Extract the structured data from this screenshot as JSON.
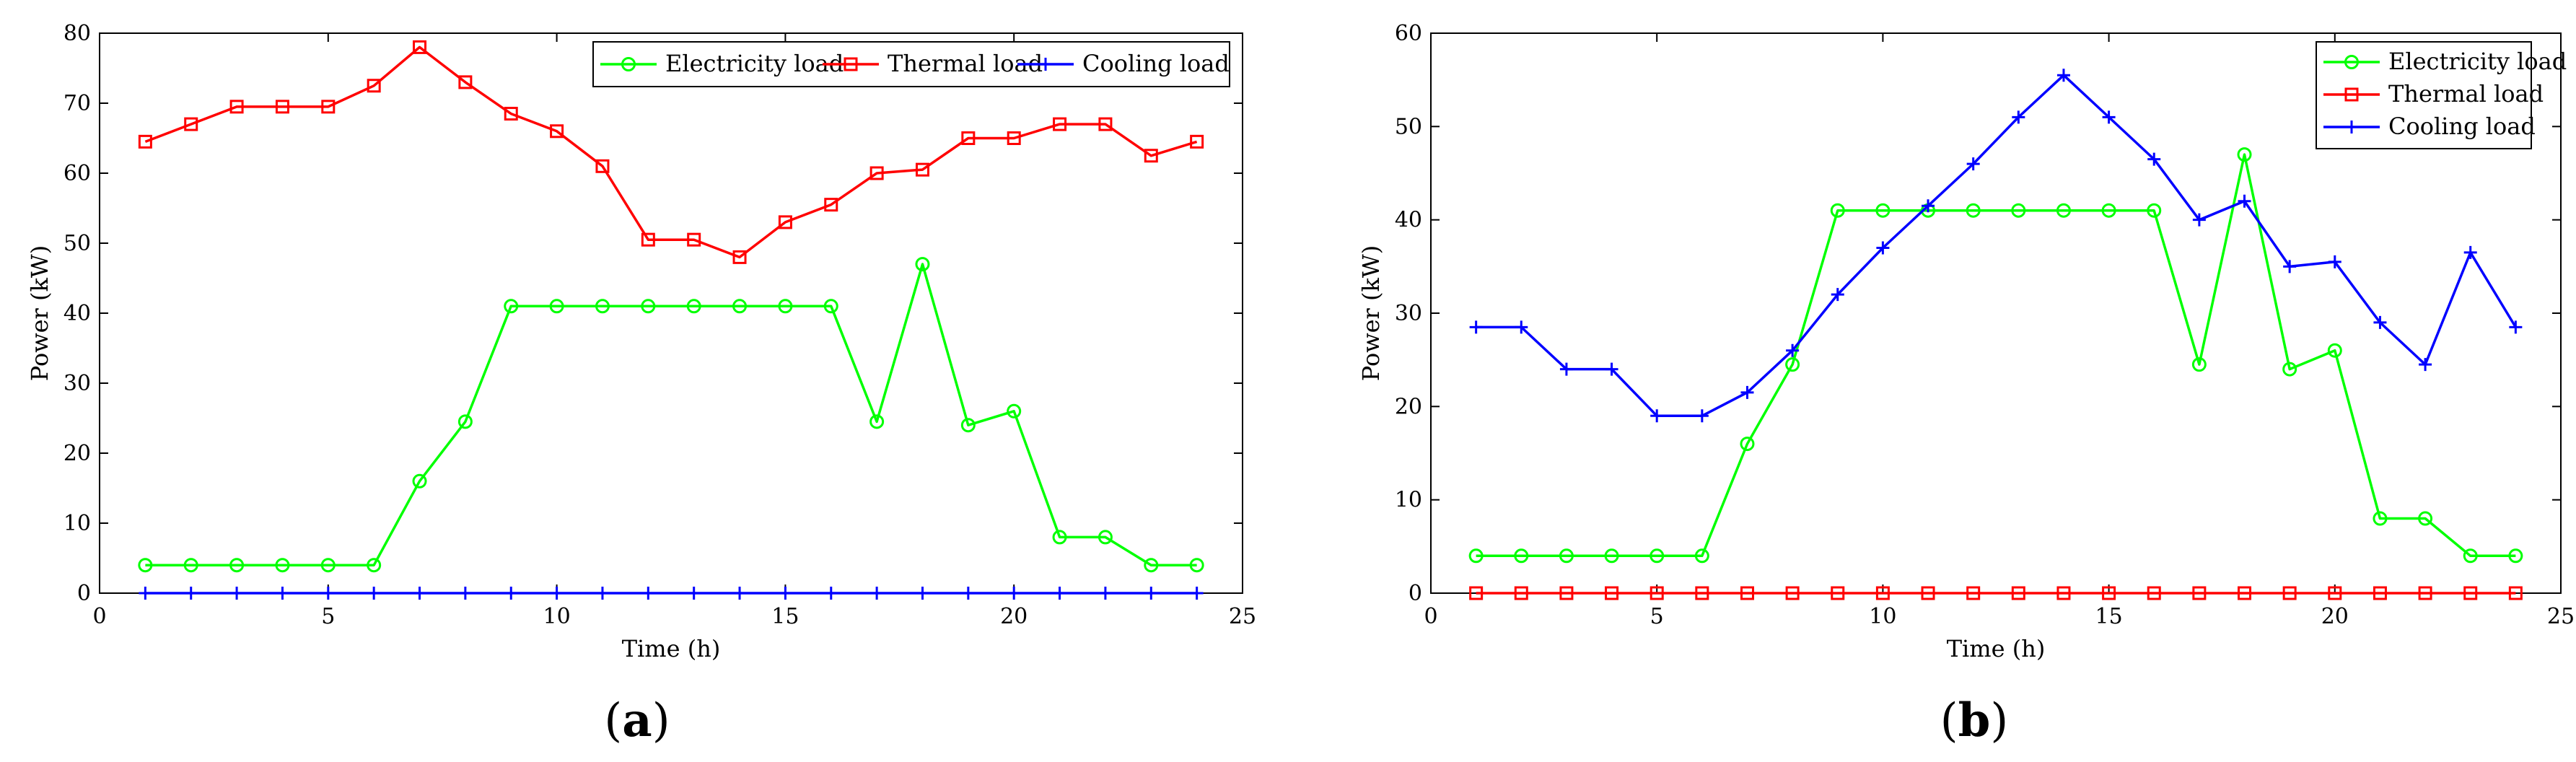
{
  "chart_data": [
    {
      "type": "line",
      "panel_label": "(a)",
      "panel_letter": "a",
      "xlabel": "Time (h)",
      "ylabel": "Power (kW)",
      "xlim": [
        0,
        25
      ],
      "ylim": [
        0,
        80
      ],
      "xticks": [
        0,
        5,
        10,
        15,
        20,
        25
      ],
      "yticks": [
        0,
        10,
        20,
        30,
        40,
        50,
        60,
        70,
        80
      ],
      "legend_position": "top-right",
      "legend_layout": "horizontal",
      "x": [
        1,
        2,
        3,
        4,
        5,
        6,
        7,
        8,
        9,
        10,
        11,
        12,
        13,
        14,
        15,
        16,
        17,
        18,
        19,
        20,
        21,
        22,
        23,
        24
      ],
      "series": [
        {
          "name": "Electricity load",
          "color": "#00ff00",
          "marker": "circle",
          "values": [
            4,
            4,
            4,
            4,
            4,
            4,
            16,
            24.5,
            41,
            41,
            41,
            41,
            41,
            41,
            41,
            41,
            24.5,
            47,
            24,
            26,
            8,
            8,
            4,
            4
          ]
        },
        {
          "name": "Thermal load",
          "color": "#ff0000",
          "marker": "square",
          "values": [
            64.5,
            67,
            69.5,
            69.5,
            69.5,
            72.5,
            78,
            73,
            68.5,
            66,
            61,
            50.5,
            50.5,
            48,
            53,
            55.5,
            60,
            60.5,
            65,
            65,
            67,
            67,
            62.5,
            64.5
          ]
        },
        {
          "name": "Cooling load",
          "color": "#0000ff",
          "marker": "plus",
          "values": [
            0,
            0,
            0,
            0,
            0,
            0,
            0,
            0,
            0,
            0,
            0,
            0,
            0,
            0,
            0,
            0,
            0,
            0,
            0,
            0,
            0,
            0,
            0,
            0
          ]
        }
      ]
    },
    {
      "type": "line",
      "panel_label": "(b)",
      "panel_letter": "b",
      "xlabel": "Time (h)",
      "ylabel": "Power (kW)",
      "xlim": [
        0,
        25
      ],
      "ylim": [
        0,
        60
      ],
      "xticks": [
        0,
        5,
        10,
        15,
        20,
        25
      ],
      "yticks": [
        0,
        10,
        20,
        30,
        40,
        50,
        60
      ],
      "legend_position": "top-right",
      "legend_layout": "vertical",
      "x": [
        1,
        2,
        3,
        4,
        5,
        6,
        7,
        8,
        9,
        10,
        11,
        12,
        13,
        14,
        15,
        16,
        17,
        18,
        19,
        20,
        21,
        22,
        23,
        24
      ],
      "series": [
        {
          "name": "Electricity load",
          "color": "#00ff00",
          "marker": "circle",
          "values": [
            4,
            4,
            4,
            4,
            4,
            4,
            16,
            24.5,
            41,
            41,
            41,
            41,
            41,
            41,
            41,
            41,
            24.5,
            47,
            24,
            26,
            8,
            8,
            4,
            4
          ]
        },
        {
          "name": "Thermal load",
          "color": "#ff0000",
          "marker": "square",
          "values": [
            0,
            0,
            0,
            0,
            0,
            0,
            0,
            0,
            0,
            0,
            0,
            0,
            0,
            0,
            0,
            0,
            0,
            0,
            0,
            0,
            0,
            0,
            0,
            0
          ]
        },
        {
          "name": "Cooling load",
          "color": "#0000ff",
          "marker": "plus",
          "values": [
            28.5,
            28.5,
            24,
            24,
            19,
            19,
            21.5,
            26,
            32,
            37,
            41.5,
            46,
            51,
            55.5,
            51,
            46.5,
            40,
            42,
            35,
            35.5,
            29,
            24.5,
            36.5,
            28.5
          ]
        }
      ]
    }
  ]
}
